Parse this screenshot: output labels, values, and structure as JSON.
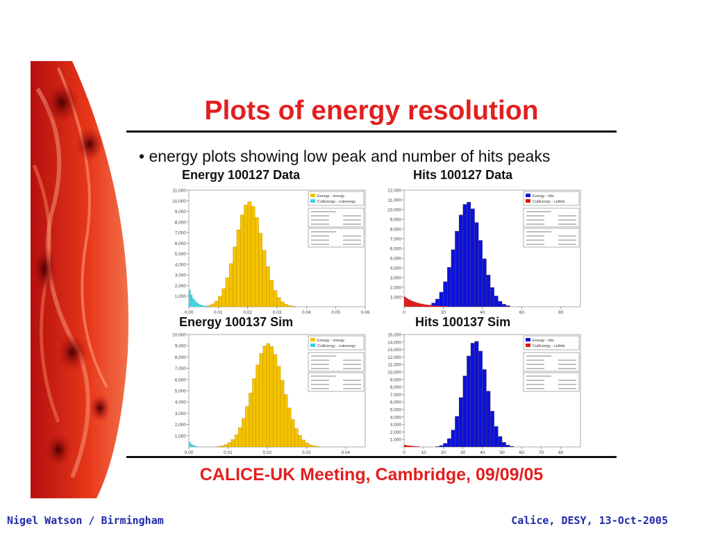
{
  "slide": {
    "title": "Plots of energy resolution",
    "bullet": "• energy plots showing low peak and number of hits peaks",
    "meeting": "CALICE-UK Meeting, Cambridge, 09/09/05",
    "footer_left": "Nigel Watson / Birmingham",
    "footer_right": "Calice, DESY, 13-Oct-2005"
  },
  "colors": {
    "accent": "#e21f1f",
    "energy": "#f5c200",
    "cut_energy": "#3cd0e0",
    "hits": "#0a10e0",
    "cut_hits": "#d81818",
    "footer": "#1f2aa8"
  },
  "chart_data": [
    {
      "type": "bar",
      "title": "Energy 100127 Data",
      "xlim": [
        0,
        0.06
      ],
      "ylim": [
        0,
        11000
      ],
      "xticks": [
        "0.00",
        "0.01",
        "0.02",
        "0.03",
        "0.04",
        "0.05",
        "0.06"
      ],
      "yticks": [
        "1,000",
        "2,000",
        "3,000",
        "4,000",
        "5,000",
        "6,000",
        "7,000",
        "8,000",
        "9,000",
        "10,000",
        "11,000"
      ],
      "legend": [
        "Energy - energy",
        "CutEnergy - cutenergy"
      ],
      "legend_position": "top-right",
      "peak": {
        "series": "Energy",
        "center": 0.0205,
        "sigma": 0.0046,
        "height": 9900
      },
      "low_peak": {
        "series": "CutEnergy",
        "max": 1900,
        "decay": 0.0018,
        "end": 0.007
      },
      "bin_width": 0.00125
    },
    {
      "type": "bar",
      "title": "Hits 100127 Data",
      "xlim": [
        0,
        90
      ],
      "ylim": [
        0,
        12000
      ],
      "xticks": [
        "0",
        "20",
        "40",
        "60",
        "80"
      ],
      "yticks": [
        "1,000",
        "2,000",
        "3,000",
        "4,000",
        "5,000",
        "6,000",
        "7,000",
        "8,000",
        "9,000",
        "10,000",
        "11,000",
        "12,000"
      ],
      "legend": [
        "Energy - hits",
        "CutEnergy - cuthits"
      ],
      "legend_position": "top-right",
      "peak": {
        "series": "Energy",
        "center": 32.5,
        "sigma": 6.8,
        "height": 10800
      },
      "low_peak": {
        "series": "CutEnergy",
        "max": 1100,
        "decay": 7,
        "end": 22
      },
      "bin_width": 2
    },
    {
      "type": "bar",
      "title": "Energy 100137 Sim",
      "xlim": [
        0,
        0.045
      ],
      "ylim": [
        0,
        10000
      ],
      "xticks": [
        "0.00",
        "0.01",
        "0.02",
        "0.03",
        "0.04"
      ],
      "yticks": [
        "1,000",
        "2,000",
        "3,000",
        "4,000",
        "5,000",
        "6,000",
        "7,000",
        "8,000",
        "9,000",
        "10,000"
      ],
      "legend": [
        "Energy - energy",
        "CutEnergy - cutenergy"
      ],
      "legend_position": "top-right",
      "peak": {
        "series": "Energy",
        "center": 0.0202,
        "sigma": 0.0039,
        "height": 9200
      },
      "low_peak": {
        "series": "CutEnergy",
        "max": 600,
        "decay": 0.0009,
        "end": 0.004
      },
      "bin_width": 0.0009
    },
    {
      "type": "bar",
      "title": "Hits 100137 Sim",
      "xlim": [
        0,
        90
      ],
      "ylim": [
        0,
        15000
      ],
      "xticks": [
        "0",
        "10",
        "20",
        "30",
        "40",
        "50",
        "60",
        "70",
        "80"
      ],
      "yticks": [
        "1,000",
        "2,000",
        "3,000",
        "4,000",
        "5,000",
        "6,000",
        "7,000",
        "8,000",
        "9,000",
        "10,000",
        "11,000",
        "12,000",
        "13,000",
        "14,000",
        "15,000"
      ],
      "legend": [
        "Energy - hits",
        "CutEnergy - cuthits"
      ],
      "legend_position": "top-right",
      "peak": {
        "series": "Energy",
        "center": 36.3,
        "sigma": 5.9,
        "height": 14200
      },
      "low_peak": {
        "series": "CutEnergy",
        "max": 300,
        "decay": 5,
        "end": 10
      },
      "bin_width": 2
    }
  ]
}
